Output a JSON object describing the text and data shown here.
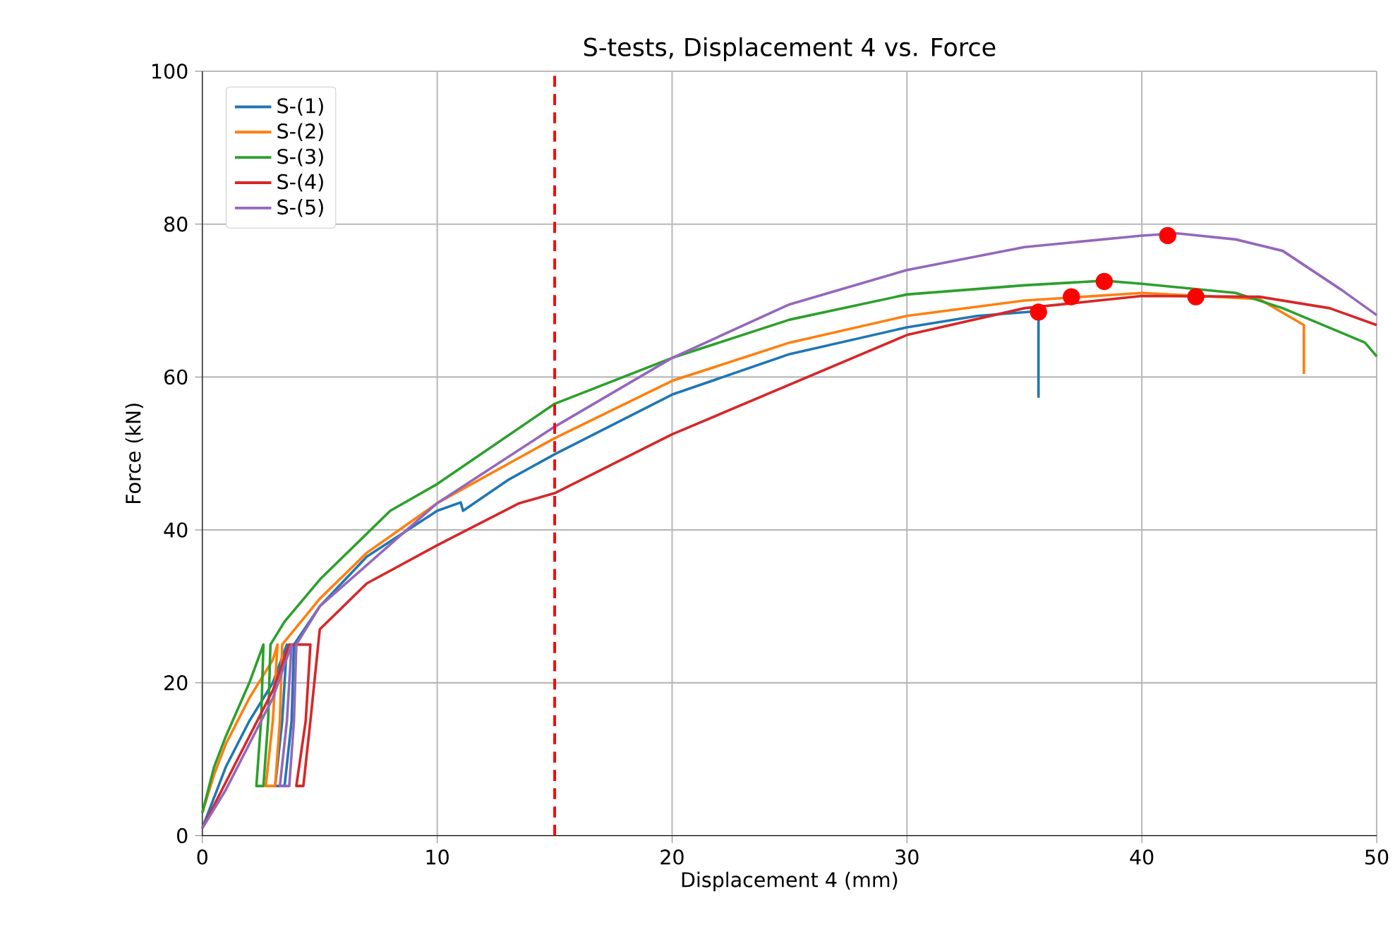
{
  "chart_data": {
    "type": "line",
    "title": "S-tests, Displacement 4 vs. Force",
    "xlabel": "Displacement 4 (mm)",
    "ylabel": "Force (kN)",
    "xlim": [
      0,
      50
    ],
    "ylim": [
      0,
      100
    ],
    "xticks": [
      0,
      10,
      20,
      30,
      40,
      50
    ],
    "yticks": [
      0,
      20,
      40,
      60,
      80,
      100
    ],
    "grid": true,
    "legend": "top left",
    "ref_lines": [
      {
        "axis": "x",
        "value": 15,
        "label": null,
        "color": "#ff0000",
        "line_style": "dashed"
      }
    ],
    "series": [
      {
        "name": "S-(1)",
        "color": "#1f77b4",
        "x": [
          0,
          0.5,
          1,
          2,
          3,
          3.6,
          3.4,
          3.1,
          3.5,
          3.8,
          3.9,
          5,
          7,
          10,
          11,
          11.1,
          13,
          15,
          20,
          25,
          30,
          33,
          35.5,
          35.6,
          35.6
        ],
        "values": [
          1,
          5,
          9,
          15,
          20,
          25,
          15,
          6.5,
          6.5,
          15,
          25,
          30,
          36.5,
          42.5,
          43.6,
          42.5,
          46.5,
          49.9,
          57.7,
          63,
          66.5,
          68,
          68.6,
          68.6,
          57.3
        ]
      },
      {
        "name": "S-(2)",
        "color": "#ff7f0e",
        "x": [
          0,
          0.5,
          1,
          2,
          3,
          3.2,
          3.0,
          2.7,
          3.1,
          3.3,
          3.4,
          5,
          7,
          10,
          15,
          20,
          25,
          30,
          35,
          40,
          45,
          46.9,
          46.9
        ],
        "values": [
          3,
          8,
          12,
          18,
          23,
          25,
          15,
          6.5,
          6.5,
          15,
          25,
          31,
          37,
          43.5,
          52,
          59.5,
          64.5,
          68,
          70,
          71,
          70.2,
          66.8,
          60.4
        ]
      },
      {
        "name": "S-(3)",
        "color": "#2ca02c",
        "x": [
          0,
          0.5,
          1,
          2,
          2.6,
          2.5,
          2.3,
          2.6,
          2.8,
          2.9,
          3.5,
          5,
          8,
          10,
          15,
          20,
          25,
          30,
          35,
          38.4,
          40,
          44,
          46,
          48.5,
          49.5,
          50
        ],
        "values": [
          3,
          9,
          13,
          20,
          25,
          15,
          6.5,
          6.5,
          15,
          25,
          28,
          33.5,
          42.5,
          46,
          56.5,
          62.5,
          67.5,
          70.8,
          72,
          72.6,
          72.2,
          71,
          69,
          65.8,
          64.5,
          62.7
        ]
      },
      {
        "name": "S-(4)",
        "color": "#d62728",
        "x": [
          0,
          1,
          2,
          3,
          3.7,
          4.6,
          4.4,
          4.0,
          4.3,
          4.6,
          5,
          7,
          10,
          13.5,
          15,
          20,
          25,
          30,
          35,
          40,
          45,
          48,
          50
        ],
        "values": [
          1,
          7,
          13,
          19,
          25,
          25,
          15,
          6.5,
          6.5,
          15,
          27,
          33,
          38,
          43.5,
          44.8,
          52.5,
          59,
          65.5,
          69,
          70.6,
          70.5,
          69,
          66.8
        ]
      },
      {
        "name": "S-(5)",
        "color": "#9467bd",
        "x": [
          0,
          1,
          2,
          3,
          3.8,
          3.6,
          3.3,
          3.7,
          3.9,
          4.0,
          5,
          10,
          15,
          20,
          25,
          30,
          35,
          40,
          41.5,
          44,
          46,
          48.5,
          50
        ],
        "values": [
          1,
          6,
          12,
          18,
          25,
          15,
          6.5,
          6.5,
          15,
          25,
          30,
          43.5,
          53.5,
          62.5,
          69.5,
          74,
          77,
          78.5,
          78.8,
          78,
          76.5,
          71.4,
          68.1
        ]
      },
      {
        "type": "scatter",
        "color": "#ff0000",
        "marker": "circle",
        "x": [
          35.6,
          37,
          38.4,
          41.1,
          42.3
        ],
        "values": [
          68.5,
          70.5,
          72.5,
          78.5,
          70.5
        ]
      }
    ]
  }
}
